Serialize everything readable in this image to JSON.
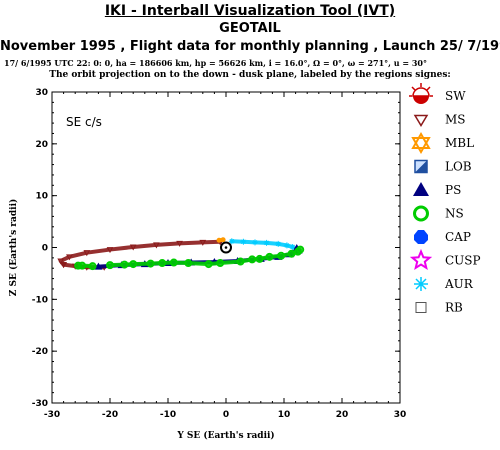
{
  "header": {
    "tool_title": "IKI - Interball Visualization Tool (IVT)",
    "satellite": "GEOTAIL",
    "subtitle": "November 1995 ,  Flight data for monthly planning ,   Launch 25/ 7/1992",
    "orbit_params": "17/ 6/1995 UTC 22: 0: 0, ha = 186606 km, hp = 56626 km, i = 16.0°, Ω =   0°, ω = 271°, u =  30°",
    "note": "The orbit projection on to the down - dusk plane, labeled by the regions signes:"
  },
  "chart_data": {
    "type": "scatter",
    "frame_label": "SE c/s",
    "xlabel": "Y SE (Earth's radii)",
    "ylabel": "Z SE (Earth's radii)",
    "xlim": [
      -30,
      30
    ],
    "ylim": [
      -30,
      30
    ],
    "xticks": [
      -30,
      -20,
      -10,
      0,
      10,
      20,
      30
    ],
    "yticks": [
      -30,
      -20,
      -10,
      0,
      10,
      20,
      30
    ],
    "earth": {
      "x": 0,
      "y": 0
    },
    "legend": [
      {
        "code": "SW",
        "symbol": "sun",
        "color": "#cc0000"
      },
      {
        "code": "MS",
        "symbol": "triangle-down-open",
        "color": "#8b1a1a"
      },
      {
        "code": "MBL",
        "symbol": "star-of-david",
        "color": "#ff9900"
      },
      {
        "code": "LOB",
        "symbol": "half-square",
        "color": "#1f4fa0"
      },
      {
        "code": "PS",
        "symbol": "triangle-filled",
        "color": "#000080"
      },
      {
        "code": "NS",
        "symbol": "circle-open",
        "color": "#00cc00"
      },
      {
        "code": "CAP",
        "symbol": "hexagon-filled",
        "color": "#0044ff"
      },
      {
        "code": "CUSP",
        "symbol": "star-open",
        "color": "#ee00ee"
      },
      {
        "code": "AUR",
        "symbol": "asterisk",
        "color": "#00ccff"
      },
      {
        "code": "RB",
        "symbol": "square-open",
        "color": "#555555"
      }
    ],
    "orbit_segments": [
      {
        "region": "MS",
        "color": "#8b1a1a",
        "points": [
          [
            -1,
            1.1
          ],
          [
            -4,
            1.0
          ],
          [
            -8,
            0.8
          ],
          [
            -12,
            0.5
          ],
          [
            -16,
            0.1
          ],
          [
            -20,
            -0.4
          ],
          [
            -24,
            -1.0
          ],
          [
            -27,
            -1.8
          ],
          [
            -28.5,
            -2.6
          ],
          [
            -28,
            -3.3
          ]
        ]
      },
      {
        "region": "MS",
        "color": "#8b1a1a",
        "points": [
          [
            -28,
            -3.3
          ],
          [
            -26,
            -3.6
          ],
          [
            -24,
            -3.8
          ],
          [
            -21,
            -3.8
          ]
        ]
      },
      {
        "region": "AUR",
        "color": "#00ccff",
        "points": [
          [
            1,
            1.2
          ],
          [
            3,
            1.1
          ],
          [
            5,
            1.0
          ],
          [
            7,
            0.9
          ],
          [
            9,
            0.7
          ],
          [
            10.5,
            0.4
          ],
          [
            11.5,
            0.1
          ]
        ]
      },
      {
        "region": "PS",
        "color": "#000080",
        "points": [
          [
            -22,
            -3.7
          ],
          [
            -18,
            -3.4
          ],
          [
            -14,
            -3.2
          ],
          [
            -10,
            -3.0
          ],
          [
            -6,
            -2.9
          ],
          [
            -2,
            -2.8
          ],
          [
            2,
            -2.6
          ],
          [
            6,
            -2.2
          ],
          [
            9,
            -1.8
          ],
          [
            11,
            -1.3
          ],
          [
            12.5,
            -0.6
          ],
          [
            12.2,
            -0.1
          ]
        ]
      },
      {
        "region": "NS",
        "color": "#00cc00",
        "points": [
          [
            -20,
            -3.4
          ],
          [
            -17.5,
            -3.3
          ],
          [
            -16,
            -3.2
          ],
          [
            -13,
            -3.1
          ],
          [
            -11,
            -3.0
          ],
          [
            -9,
            -2.9
          ],
          [
            -6.5,
            -3.0
          ],
          [
            -3,
            -3.2
          ],
          [
            -1,
            -3.0
          ],
          [
            2.5,
            -2.7
          ],
          [
            4.5,
            -2.3
          ],
          [
            5.8,
            -2.2
          ],
          [
            7.5,
            -1.8
          ],
          [
            9.5,
            -1.6
          ],
          [
            11.3,
            -1.2
          ],
          [
            12.4,
            -0.8
          ],
          [
            12.8,
            -0.4
          ]
        ]
      },
      {
        "region": "NS",
        "color": "#00cc00",
        "points": [
          [
            -25.5,
            -3.5
          ],
          [
            -24.8,
            -3.5
          ],
          [
            -23,
            -3.6
          ]
        ]
      },
      {
        "region": "MBL",
        "color": "#ff9900",
        "points": [
          [
            -1.2,
            1.4
          ],
          [
            -0.5,
            1.5
          ]
        ]
      }
    ]
  }
}
